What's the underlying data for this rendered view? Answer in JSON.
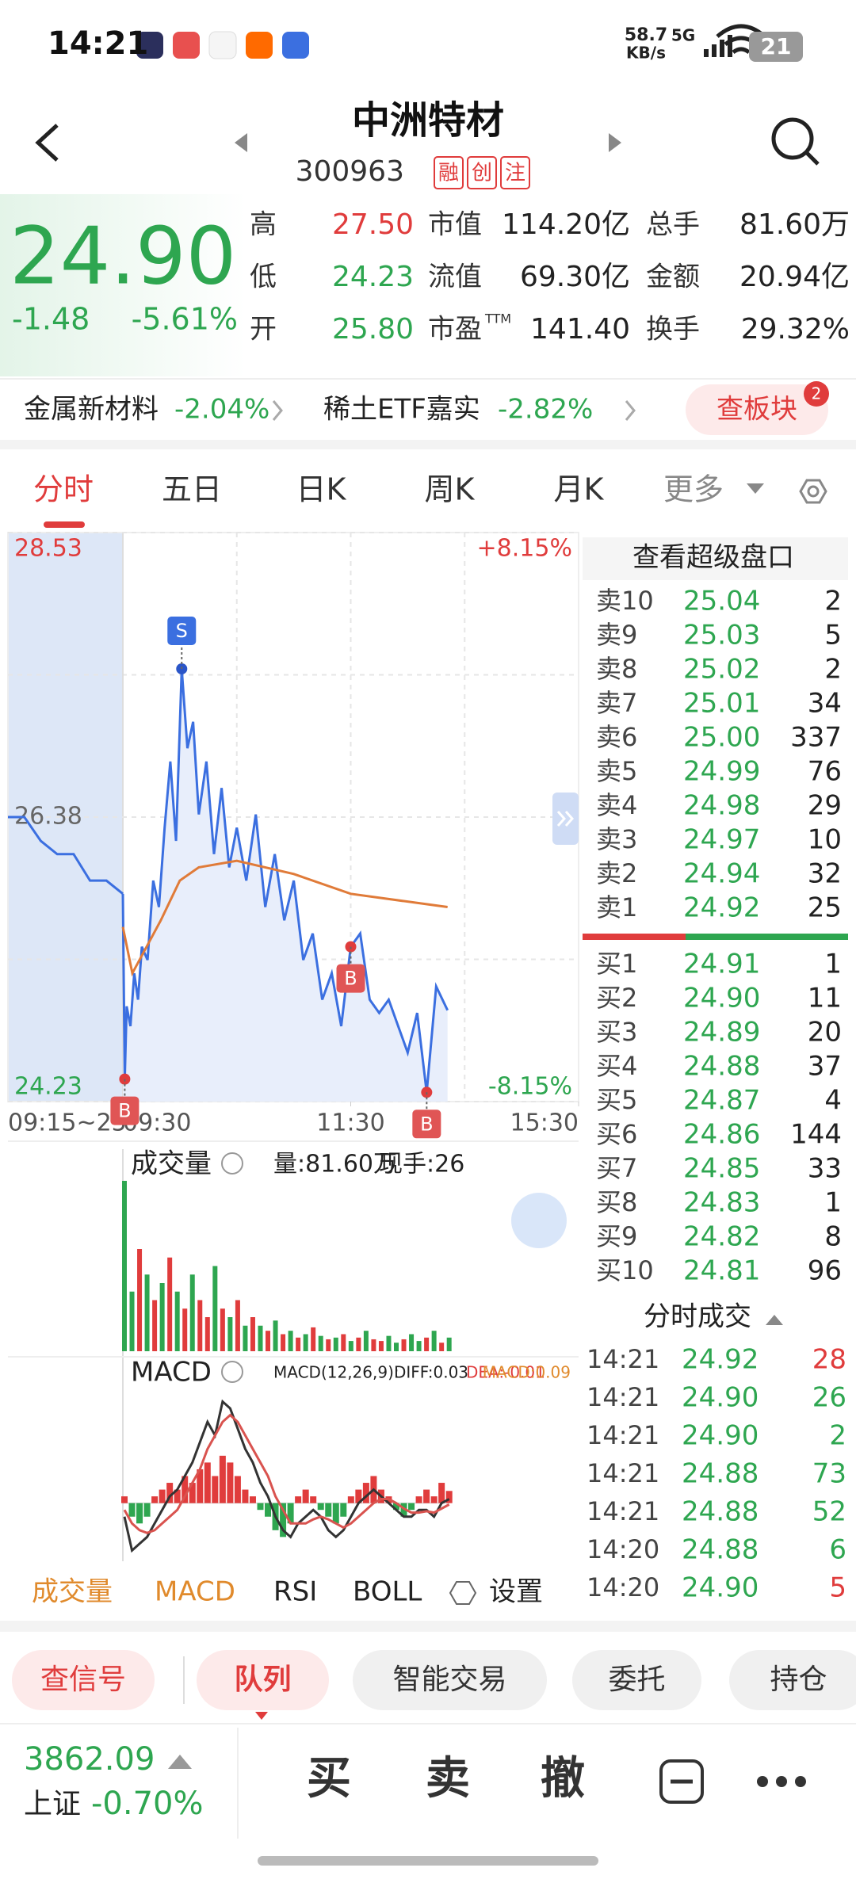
{
  "status": {
    "time": "14:21",
    "speed": "58.7",
    "speed_unit": "KB/s",
    "network": "5G",
    "battery": "21"
  },
  "header": {
    "title": "中洲特材",
    "code": "300963",
    "badges": [
      "融",
      "创",
      "注"
    ]
  },
  "quote": {
    "price": "24.90",
    "change": "-1.48",
    "change_pct": "-5.61%",
    "stats": [
      [
        {
          "label": "高",
          "value": "27.50",
          "color": "#e03c3c"
        },
        {
          "label": "市值",
          "value": "114.20亿",
          "color": "#222"
        },
        {
          "label": "总手",
          "value": "81.60万",
          "color": "#222"
        }
      ],
      [
        {
          "label": "低",
          "value": "24.23",
          "color": "#2ea650"
        },
        {
          "label": "流值",
          "value": "69.30亿",
          "color": "#222"
        },
        {
          "label": "金额",
          "value": "20.94亿",
          "color": "#222"
        }
      ],
      [
        {
          "label": "开",
          "value": "25.80",
          "color": "#2ea650"
        },
        {
          "label": "市盈",
          "sup": "TTM",
          "value": "141.40",
          "color": "#222"
        },
        {
          "label": "换手",
          "value": "29.32%",
          "color": "#222"
        }
      ]
    ]
  },
  "sectors": {
    "items": [
      {
        "name": "金属新材料",
        "change": "-2.04%"
      },
      {
        "name": "稀土ETF嘉实",
        "change": "-2.82%"
      }
    ],
    "button": "查板块",
    "badge": "2"
  },
  "tabs": [
    "分时",
    "五日",
    "日K",
    "周K",
    "月K",
    "更多"
  ],
  "chart_data": {
    "type": "line",
    "ylim": [
      24.23,
      28.53
    ],
    "yticks": [
      24.23,
      26.38,
      28.53
    ],
    "pct_top": "+8.15%",
    "pct_bottom": "-8.15%",
    "premarket_label": "09:15~25",
    "xlim": [
      0,
      240
    ],
    "xticks": [
      {
        "value": 0,
        "label": "09:30"
      },
      {
        "value": 120,
        "label": "11:30"
      },
      {
        "value": 240,
        "label": "15:30"
      }
    ],
    "premarket": [
      26.38,
      26.38,
      26.2,
      26.1,
      26.1,
      25.9,
      25.9,
      25.8
    ],
    "series": [
      {
        "name": "price",
        "color": "#3b6fe0",
        "x": [
          0,
          1,
          2,
          4,
          6,
          8,
          10,
          13,
          16,
          19,
          22,
          25,
          28,
          31,
          34,
          37,
          40,
          44,
          48,
          52,
          56,
          60,
          65,
          70,
          75,
          80,
          85,
          90,
          95,
          100,
          105,
          110,
          115,
          120,
          125,
          130,
          135,
          140,
          145,
          150,
          155,
          160,
          165,
          171
        ],
        "values": [
          25.8,
          24.4,
          24.95,
          24.8,
          25.2,
          25.0,
          25.4,
          25.3,
          25.9,
          25.7,
          26.3,
          26.8,
          26.2,
          27.5,
          26.9,
          27.1,
          26.4,
          26.8,
          26.1,
          26.6,
          26.0,
          26.3,
          25.9,
          26.4,
          25.7,
          26.1,
          25.6,
          25.9,
          25.3,
          25.5,
          25.0,
          25.2,
          24.8,
          25.4,
          25.5,
          25.0,
          24.9,
          25.0,
          24.8,
          24.6,
          24.9,
          24.3,
          25.1,
          24.92
        ]
      },
      {
        "name": "average",
        "color": "#e07b39",
        "x": [
          0,
          5,
          20,
          30,
          40,
          60,
          90,
          120,
          171
        ],
        "values": [
          25.55,
          25.2,
          25.6,
          25.9,
          26.0,
          26.05,
          25.95,
          25.8,
          25.7
        ]
      }
    ],
    "markers": [
      {
        "label": "S",
        "x": 31,
        "price": 27.5
      },
      {
        "label": "B",
        "x": 1,
        "price": 24.4
      },
      {
        "label": "B",
        "x": 120,
        "price": 25.4
      },
      {
        "label": "B",
        "x": 160,
        "price": 24.3
      }
    ]
  },
  "volume": {
    "title": "成交量",
    "total": "量:81.60万",
    "current": "现手:26",
    "ylim": [
      0,
      100
    ],
    "values": [
      100,
      35,
      60,
      45,
      30,
      40,
      55,
      35,
      25,
      45,
      30,
      20,
      50,
      25,
      20,
      30,
      15,
      20,
      15,
      12,
      18,
      10,
      12,
      8,
      10,
      14,
      9,
      7,
      8,
      10,
      6,
      8,
      12,
      7,
      6,
      9,
      5,
      7,
      10,
      6,
      8,
      12,
      5,
      8
    ]
  },
  "macd": {
    "title": "MACD",
    "params": "MACD(12,26,9):",
    "diff": "DIFF:0.03",
    "dea": "DEA:-0.01",
    "macd": "MACD:0.09",
    "ylim": [
      -0.4,
      0.8
    ],
    "hist": [
      0.05,
      -0.1,
      -0.15,
      -0.1,
      0.05,
      0.1,
      0.15,
      0.1,
      0.2,
      0.15,
      0.25,
      0.3,
      0.2,
      0.35,
      0.3,
      0.2,
      0.1,
      0.05,
      -0.05,
      -0.1,
      -0.2,
      -0.25,
      -0.15,
      0.05,
      0.1,
      0.05,
      -0.05,
      -0.1,
      -0.15,
      -0.1,
      0.05,
      0.1,
      0.15,
      0.2,
      0.1,
      0.05,
      -0.05,
      -0.1,
      -0.05,
      0.05,
      0.1,
      0.05,
      0.15,
      0.09
    ],
    "diff_values": [
      -0.1,
      -0.35,
      -0.3,
      -0.25,
      -0.15,
      -0.05,
      0.05,
      0.1,
      0.2,
      0.3,
      0.45,
      0.6,
      0.5,
      0.75,
      0.7,
      0.55,
      0.4,
      0.3,
      0.15,
      0.05,
      -0.1,
      -0.2,
      -0.25,
      -0.15,
      -0.1,
      -0.05,
      -0.1,
      -0.2,
      -0.25,
      -0.2,
      -0.1,
      0,
      0.05,
      0.1,
      0.05,
      0,
      -0.05,
      -0.1,
      -0.1,
      -0.05,
      -0.05,
      -0.1,
      0,
      0.03
    ],
    "dea_values": [
      -0.05,
      -0.15,
      -0.2,
      -0.22,
      -0.2,
      -0.15,
      -0.1,
      -0.05,
      0.05,
      0.15,
      0.25,
      0.4,
      0.5,
      0.6,
      0.65,
      0.6,
      0.5,
      0.4,
      0.3,
      0.2,
      0.05,
      -0.05,
      -0.15,
      -0.15,
      -0.15,
      -0.12,
      -0.1,
      -0.12,
      -0.15,
      -0.18,
      -0.15,
      -0.1,
      -0.05,
      0,
      0.03,
      0.03,
      0,
      -0.04,
      -0.07,
      -0.07,
      -0.06,
      -0.07,
      -0.04,
      -0.01
    ]
  },
  "indicator_tabs": [
    "成交量",
    "MACD",
    "RSI",
    "BOLL",
    "设置"
  ],
  "order_book": {
    "title": "查看超级盘口",
    "asks": [
      [
        "卖10",
        "25.04",
        "2"
      ],
      [
        "卖9",
        "25.03",
        "5"
      ],
      [
        "卖8",
        "25.02",
        "2"
      ],
      [
        "卖7",
        "25.01",
        "34"
      ],
      [
        "卖6",
        "25.00",
        "337"
      ],
      [
        "卖5",
        "24.99",
        "76"
      ],
      [
        "卖4",
        "24.98",
        "29"
      ],
      [
        "卖3",
        "24.97",
        "10"
      ],
      [
        "卖2",
        "24.94",
        "32"
      ],
      [
        "卖1",
        "24.92",
        "25"
      ]
    ],
    "bids": [
      [
        "买1",
        "24.91",
        "1"
      ],
      [
        "买2",
        "24.90",
        "11"
      ],
      [
        "买3",
        "24.89",
        "20"
      ],
      [
        "买4",
        "24.88",
        "37"
      ],
      [
        "买5",
        "24.87",
        "4"
      ],
      [
        "买6",
        "24.86",
        "144"
      ],
      [
        "买7",
        "24.85",
        "33"
      ],
      [
        "买8",
        "24.83",
        "1"
      ],
      [
        "买9",
        "24.82",
        "8"
      ],
      [
        "买10",
        "24.81",
        "96"
      ]
    ]
  },
  "trades": {
    "title": "分时成交",
    "rows": [
      {
        "time": "14:21",
        "price": "24.92",
        "volume": "28",
        "color": "#e03c3c"
      },
      {
        "time": "14:21",
        "price": "24.90",
        "volume": "26",
        "color": "#2ea650"
      },
      {
        "time": "14:21",
        "price": "24.90",
        "volume": "2",
        "color": "#2ea650"
      },
      {
        "time": "14:21",
        "price": "24.88",
        "volume": "73",
        "color": "#2ea650"
      },
      {
        "time": "14:21",
        "price": "24.88",
        "volume": "52",
        "color": "#2ea650"
      },
      {
        "time": "14:20",
        "price": "24.88",
        "volume": "6",
        "color": "#2ea650"
      },
      {
        "time": "14:20",
        "price": "24.90",
        "volume": "5",
        "color": "#e03c3c"
      }
    ]
  },
  "actions": [
    "查信号",
    "队列",
    "智能交易",
    "委托",
    "持仓"
  ],
  "footer": {
    "index_value": "3862.09",
    "index_name": "上证",
    "index_change": "-0.70%",
    "buttons": [
      "买",
      "卖",
      "撤"
    ]
  }
}
